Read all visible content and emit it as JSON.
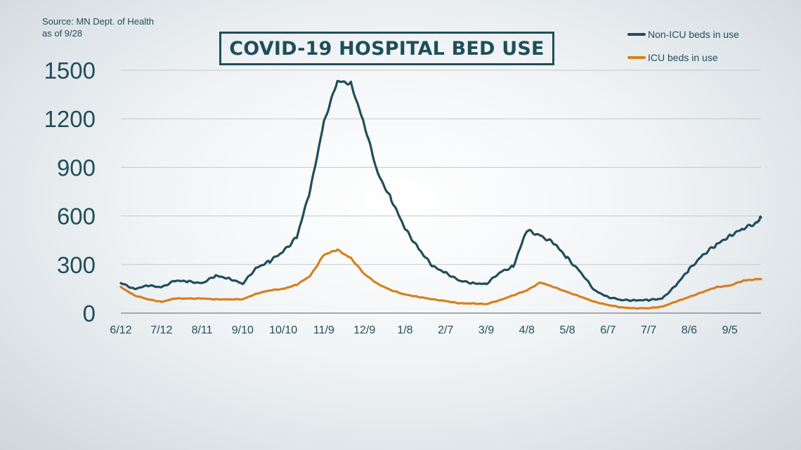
{
  "source_lines": [
    "Source: MN Dept. of Health",
    "as of 9/28"
  ],
  "chart_data": {
    "type": "line",
    "title": "COVID-19 HOSPITAL BED USE",
    "xlabel": "",
    "ylabel": "",
    "ylim": [
      0,
      1500
    ],
    "y_ticks": [
      "0",
      "300",
      "600",
      "900",
      "1200",
      "1500"
    ],
    "x_ticks": [
      "6/12",
      "7/12",
      "8/11",
      "9/10",
      "10/10",
      "11/9",
      "12/9",
      "1/8",
      "2/7",
      "3/9",
      "4/8",
      "5/8",
      "6/7",
      "7/7",
      "8/6",
      "9/5"
    ],
    "grid": true,
    "legend_position": "top-right",
    "x": [
      "2020-06-12",
      "2020-06-22",
      "2020-07-02",
      "2020-07-12",
      "2020-07-22",
      "2020-08-01",
      "2020-08-11",
      "2020-08-21",
      "2020-08-31",
      "2020-09-10",
      "2020-09-20",
      "2020-09-30",
      "2020-10-10",
      "2020-10-20",
      "2020-10-30",
      "2020-11-09",
      "2020-11-19",
      "2020-11-29",
      "2020-12-09",
      "2020-12-19",
      "2020-12-29",
      "2021-01-08",
      "2021-01-18",
      "2021-01-28",
      "2021-02-07",
      "2021-02-17",
      "2021-02-27",
      "2021-03-09",
      "2021-03-19",
      "2021-03-29",
      "2021-04-08",
      "2021-04-18",
      "2021-04-28",
      "2021-05-08",
      "2021-05-18",
      "2021-05-28",
      "2021-06-07",
      "2021-06-17",
      "2021-06-27",
      "2021-07-07",
      "2021-07-17",
      "2021-07-27",
      "2021-08-06",
      "2021-08-16",
      "2021-08-26",
      "2021-09-05",
      "2021-09-15",
      "2021-09-25",
      "2021-09-28"
    ],
    "series": [
      {
        "name": "Non-ICU beds in use",
        "color": "#1f4e5a",
        "values": [
          185,
          150,
          170,
          160,
          200,
          195,
          185,
          230,
          215,
          180,
          280,
          320,
          380,
          470,
          760,
          1180,
          1430,
          1420,
          1160,
          860,
          700,
          520,
          400,
          290,
          250,
          200,
          185,
          180,
          250,
          290,
          510,
          480,
          430,
          340,
          250,
          140,
          100,
          80,
          80,
          80,
          90,
          170,
          270,
          360,
          420,
          480,
          520,
          560,
          590
        ]
      },
      {
        "name": "ICU beds in use",
        "color": "#d6801c",
        "values": [
          160,
          110,
          85,
          70,
          90,
          90,
          90,
          85,
          85,
          85,
          120,
          140,
          150,
          175,
          230,
          360,
          390,
          340,
          240,
          180,
          140,
          115,
          100,
          85,
          75,
          60,
          60,
          55,
          80,
          110,
          140,
          190,
          160,
          130,
          100,
          70,
          50,
          35,
          30,
          30,
          40,
          70,
          100,
          130,
          160,
          170,
          200,
          210,
          210
        ]
      }
    ]
  }
}
